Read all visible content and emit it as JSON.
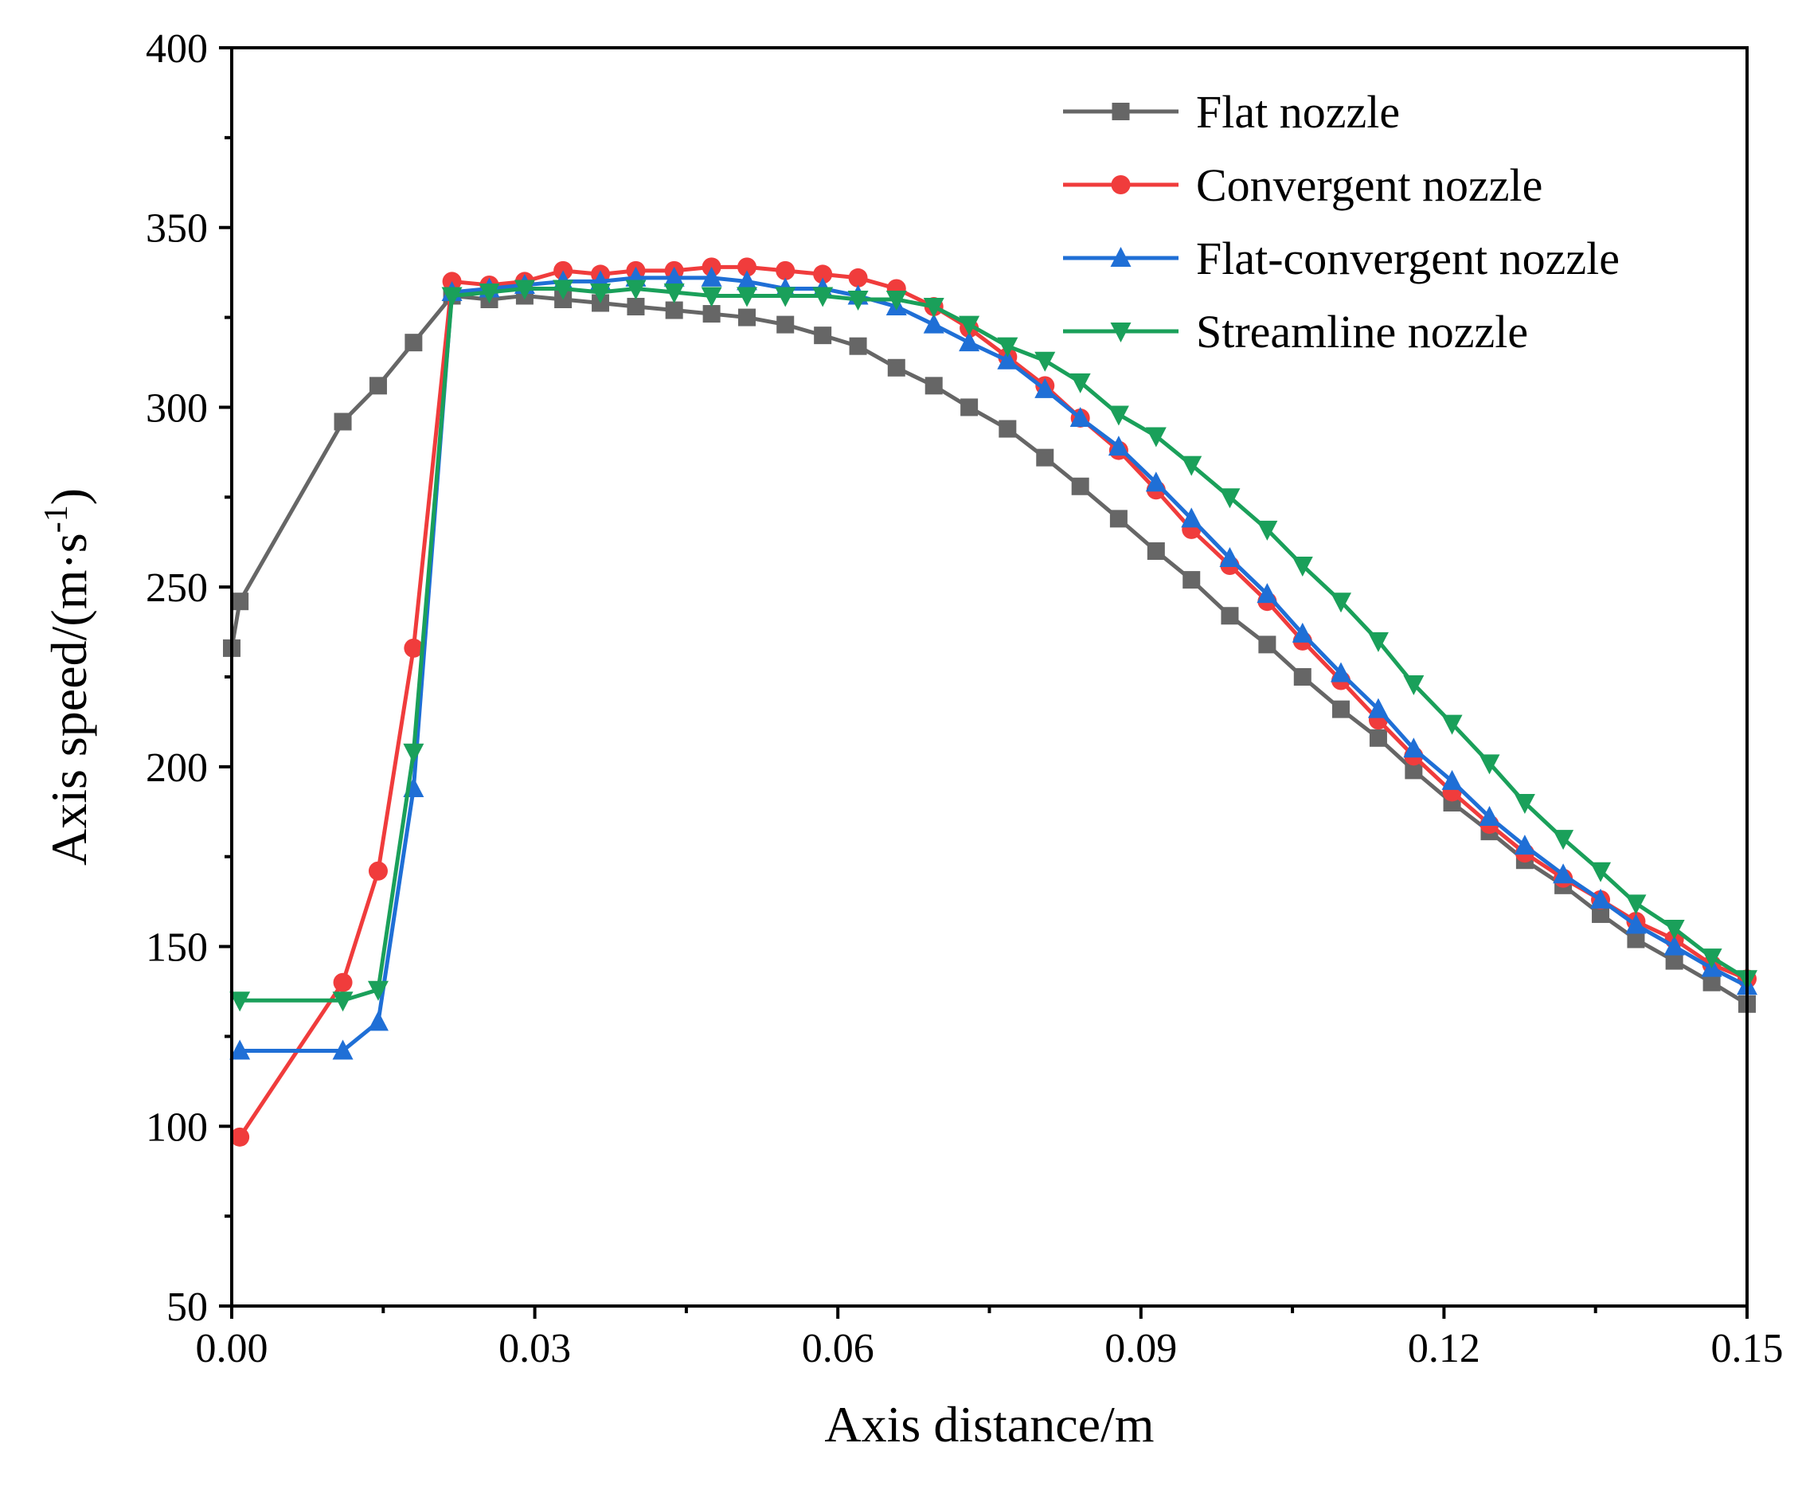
{
  "chart_data": {
    "type": "line",
    "xlabel": "Axis distance/m",
    "ylabel": "Axis speed/(m·s",
    "ylabel_sup": "-1",
    "ylabel_close": ")",
    "xlim": [
      0,
      0.15
    ],
    "ylim": [
      50,
      400
    ],
    "xticks": [
      0.0,
      0.03,
      0.06,
      0.09,
      0.12,
      0.15
    ],
    "xtick_labels": [
      "0.00",
      "0.03",
      "0.06",
      "0.09",
      "0.12",
      "0.15"
    ],
    "yticks": [
      50,
      100,
      150,
      200,
      250,
      300,
      350,
      400
    ],
    "ytick_labels": [
      "50",
      "100",
      "150",
      "200",
      "250",
      "300",
      "350",
      "400"
    ],
    "grid": false,
    "legend_position": "top-right",
    "series": [
      {
        "name": "Flat nozzle",
        "color": "#666666",
        "marker": "square",
        "x": [
          0.0,
          0.0008,
          0.011,
          0.0145,
          0.018,
          0.0218,
          0.0255,
          0.029,
          0.0328,
          0.0365,
          0.04,
          0.0438,
          0.0475,
          0.051,
          0.0548,
          0.0585,
          0.062,
          0.0658,
          0.0695,
          0.073,
          0.0768,
          0.0805,
          0.084,
          0.0878,
          0.0915,
          0.095,
          0.0988,
          0.1025,
          0.106,
          0.1098,
          0.1135,
          0.117,
          0.1208,
          0.1245,
          0.128,
          0.1318,
          0.1355,
          0.139,
          0.1428,
          0.1465,
          0.15
        ],
        "y": [
          233,
          246,
          296,
          306,
          318,
          331,
          330,
          331,
          330,
          329,
          328,
          327,
          326,
          325,
          323,
          320,
          317,
          311,
          306,
          300,
          294,
          286,
          278,
          269,
          260,
          252,
          242,
          234,
          225,
          216,
          208,
          199,
          190,
          182,
          174,
          167,
          159,
          152,
          146,
          140,
          134
        ]
      },
      {
        "name": "Convergent nozzle",
        "color": "#f03c3c",
        "marker": "circle",
        "x": [
          0.0008,
          0.011,
          0.0145,
          0.018,
          0.0218,
          0.0255,
          0.029,
          0.0328,
          0.0365,
          0.04,
          0.0438,
          0.0475,
          0.051,
          0.0548,
          0.0585,
          0.062,
          0.0658,
          0.0695,
          0.073,
          0.0768,
          0.0805,
          0.084,
          0.0878,
          0.0915,
          0.095,
          0.0988,
          0.1025,
          0.106,
          0.1098,
          0.1135,
          0.117,
          0.1208,
          0.1245,
          0.128,
          0.1318,
          0.1355,
          0.139,
          0.1428,
          0.1465,
          0.15
        ],
        "y": [
          97,
          140,
          171,
          233,
          335,
          334,
          335,
          338,
          337,
          338,
          338,
          339,
          339,
          338,
          337,
          336,
          333,
          328,
          322,
          314,
          306,
          297,
          288,
          277,
          266,
          256,
          246,
          235,
          224,
          213,
          203,
          193,
          184,
          176,
          169,
          163,
          157,
          152,
          145,
          141
        ]
      },
      {
        "name": "Flat-convergent nozzle",
        "color": "#1f6fd6",
        "marker": "triangle-up",
        "x": [
          0.0008,
          0.011,
          0.0145,
          0.018,
          0.0218,
          0.0255,
          0.029,
          0.0328,
          0.0365,
          0.04,
          0.0438,
          0.0475,
          0.051,
          0.0548,
          0.0585,
          0.062,
          0.0658,
          0.0695,
          0.073,
          0.0768,
          0.0805,
          0.084,
          0.0878,
          0.0915,
          0.095,
          0.0988,
          0.1025,
          0.106,
          0.1098,
          0.1135,
          0.117,
          0.1208,
          0.1245,
          0.128,
          0.1318,
          0.1355,
          0.139,
          0.1428,
          0.1465,
          0.15
        ],
        "y": [
          121,
          121,
          129,
          194,
          332,
          333,
          334,
          335,
          335,
          336,
          336,
          336,
          335,
          333,
          333,
          331,
          328,
          323,
          318,
          313,
          305,
          297,
          289,
          279,
          269,
          258,
          248,
          237,
          226,
          216,
          205,
          196,
          186,
          178,
          170,
          163,
          156,
          150,
          144,
          139
        ]
      },
      {
        "name": "Streamline nozzle",
        "color": "#1aa05a",
        "marker": "triangle-down",
        "x": [
          0.0008,
          0.011,
          0.0145,
          0.018,
          0.0218,
          0.0255,
          0.029,
          0.0328,
          0.0365,
          0.04,
          0.0438,
          0.0475,
          0.051,
          0.0548,
          0.0585,
          0.062,
          0.0658,
          0.0695,
          0.073,
          0.0768,
          0.0805,
          0.084,
          0.0878,
          0.0915,
          0.095,
          0.0988,
          0.1025,
          0.106,
          0.1098,
          0.1135,
          0.117,
          0.1208,
          0.1245,
          0.128,
          0.1318,
          0.1355,
          0.139,
          0.1428,
          0.1465,
          0.15
        ],
        "y": [
          135,
          135,
          138,
          204,
          331,
          332,
          333,
          333,
          332,
          333,
          332,
          331,
          331,
          331,
          331,
          330,
          330,
          328,
          323,
          317,
          313,
          307,
          298,
          292,
          284,
          275,
          266,
          256,
          246,
          235,
          223,
          212,
          201,
          190,
          180,
          171,
          162,
          155,
          147,
          141
        ]
      }
    ]
  }
}
